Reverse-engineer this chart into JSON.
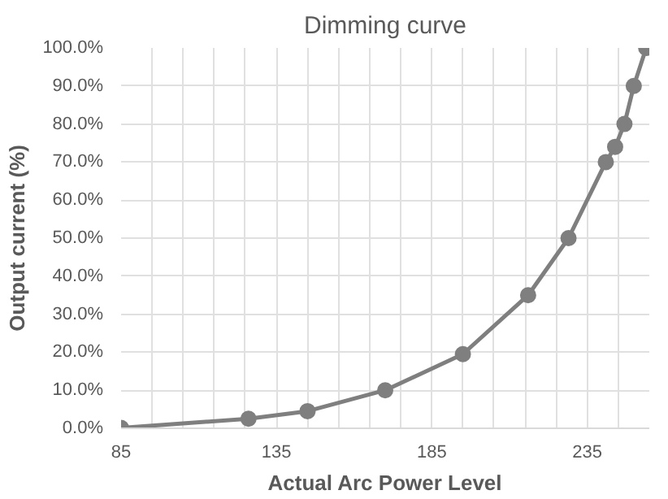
{
  "chart_data": {
    "type": "line",
    "title": "Dimming curve",
    "xlabel": "Actual Arc Power Level",
    "ylabel": "Output current (%)",
    "x": [
      85,
      126,
      145,
      170,
      195,
      216,
      229,
      241,
      244,
      247,
      250,
      254
    ],
    "series": [
      {
        "color": "#7f7f7f",
        "values": [
          0.1,
          2.5,
          4.5,
          10,
          19.5,
          35,
          50,
          70,
          74,
          80,
          90,
          100
        ]
      }
    ],
    "xlim": [
      85,
      255
    ],
    "ylim": [
      0,
      100
    ],
    "xticks": [
      85,
      {
        "value": 95,
        "label": null
      },
      {
        "value": 105,
        "label": null
      },
      {
        "value": 115,
        "label": null
      },
      {
        "value": 125,
        "label": null
      },
      135,
      {
        "value": 145,
        "label": null
      },
      {
        "value": 155,
        "label": null
      },
      {
        "value": 165,
        "label": null
      },
      {
        "value": 175,
        "label": null
      },
      185,
      {
        "value": 195,
        "label": null
      },
      {
        "value": 205,
        "label": null
      },
      {
        "value": 215,
        "label": null
      },
      {
        "value": 225,
        "label": null
      },
      235,
      {
        "value": 245,
        "label": null
      }
    ],
    "yticks": [
      {
        "value": 0,
        "label": "0.0%"
      },
      {
        "value": 10,
        "label": "10.0%"
      },
      {
        "value": 20,
        "label": "20.0%"
      },
      {
        "value": 30,
        "label": "30.0%"
      },
      {
        "value": 40,
        "label": "40.0%"
      },
      {
        "value": 50,
        "label": "50.0%"
      },
      {
        "value": 60,
        "label": "60.0%"
      },
      {
        "value": 70,
        "label": "70.0%"
      },
      {
        "value": 80,
        "label": "80.0%"
      },
      {
        "value": 90,
        "label": "90.0%"
      },
      {
        "value": 100,
        "label": "100.0%"
      }
    ],
    "grid": true,
    "marker": "circle",
    "line_style": "solid"
  }
}
